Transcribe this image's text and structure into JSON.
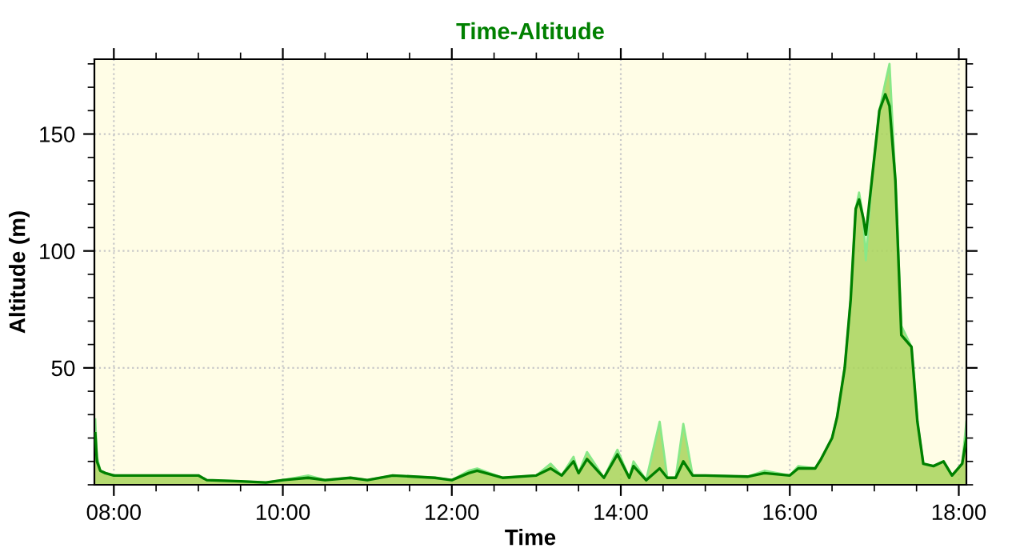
{
  "chart_data": {
    "type": "area",
    "title": "Time-Altitude",
    "xlabel": "Time",
    "ylabel": "Altitude (m)",
    "x": [
      7.78,
      7.8,
      7.84,
      7.9,
      8.0,
      9.0,
      9.1,
      9.5,
      9.8,
      10.0,
      10.3,
      10.5,
      10.8,
      11.0,
      11.3,
      11.8,
      12.0,
      12.2,
      12.3,
      12.6,
      13.0,
      13.17,
      13.3,
      13.44,
      13.5,
      13.6,
      13.8,
      13.96,
      14.1,
      14.15,
      14.3,
      14.46,
      14.55,
      14.65,
      14.74,
      14.85,
      15.0,
      15.5,
      15.7,
      16.0,
      16.1,
      16.3,
      16.37,
      16.5,
      16.56,
      16.65,
      16.72,
      16.78,
      16.82,
      16.87,
      16.9,
      16.97,
      17.06,
      17.13,
      17.18,
      17.25,
      17.32,
      17.44,
      17.51,
      17.58,
      17.7,
      17.82,
      17.92,
      18.04,
      18.09
    ],
    "series": [
      {
        "color": "#88e888",
        "values": [
          28,
          12,
          6,
          5,
          4,
          4,
          2,
          1.5,
          1,
          2,
          4,
          2,
          3,
          2,
          4,
          3,
          2,
          6,
          7,
          3,
          4,
          9,
          4,
          12,
          5,
          14,
          3,
          15,
          3,
          10,
          2,
          27,
          3,
          3,
          26,
          4,
          4,
          3.5,
          6,
          4,
          8,
          7,
          11,
          20,
          29,
          50,
          79,
          118,
          125,
          114,
          96,
          130,
          160,
          172,
          180,
          130,
          68,
          59,
          27,
          9,
          8,
          10,
          4,
          9,
          27
        ]
      },
      {
        "type": "line",
        "color": "#008000",
        "values": [
          22,
          10,
          6,
          5,
          4,
          4,
          2,
          1.5,
          1,
          2,
          3,
          2,
          3,
          2,
          4,
          3,
          2,
          5,
          6,
          3,
          4,
          7,
          4,
          10,
          5,
          11,
          3,
          13,
          3,
          8,
          2,
          7,
          3,
          3,
          10,
          4,
          4,
          3.5,
          5,
          4,
          7,
          7,
          11,
          20,
          29,
          50,
          79,
          118,
          122,
          114,
          107,
          130,
          160,
          167,
          162,
          130,
          64,
          59,
          27,
          9,
          8,
          10,
          4,
          9,
          20
        ]
      }
    ],
    "xlim": [
      7.77,
      18.09
    ],
    "ylim": [
      0,
      182
    ],
    "xticks": [
      {
        "value": 8,
        "label": "08:00"
      },
      {
        "value": 10,
        "label": "10:00"
      },
      {
        "value": 12,
        "label": "12:00"
      },
      {
        "value": 14,
        "label": "14:00"
      },
      {
        "value": 16,
        "label": "16:00"
      },
      {
        "value": 18,
        "label": "18:00"
      }
    ],
    "yticks": [
      50,
      100,
      150
    ],
    "grid": true,
    "line_style": "solid"
  }
}
